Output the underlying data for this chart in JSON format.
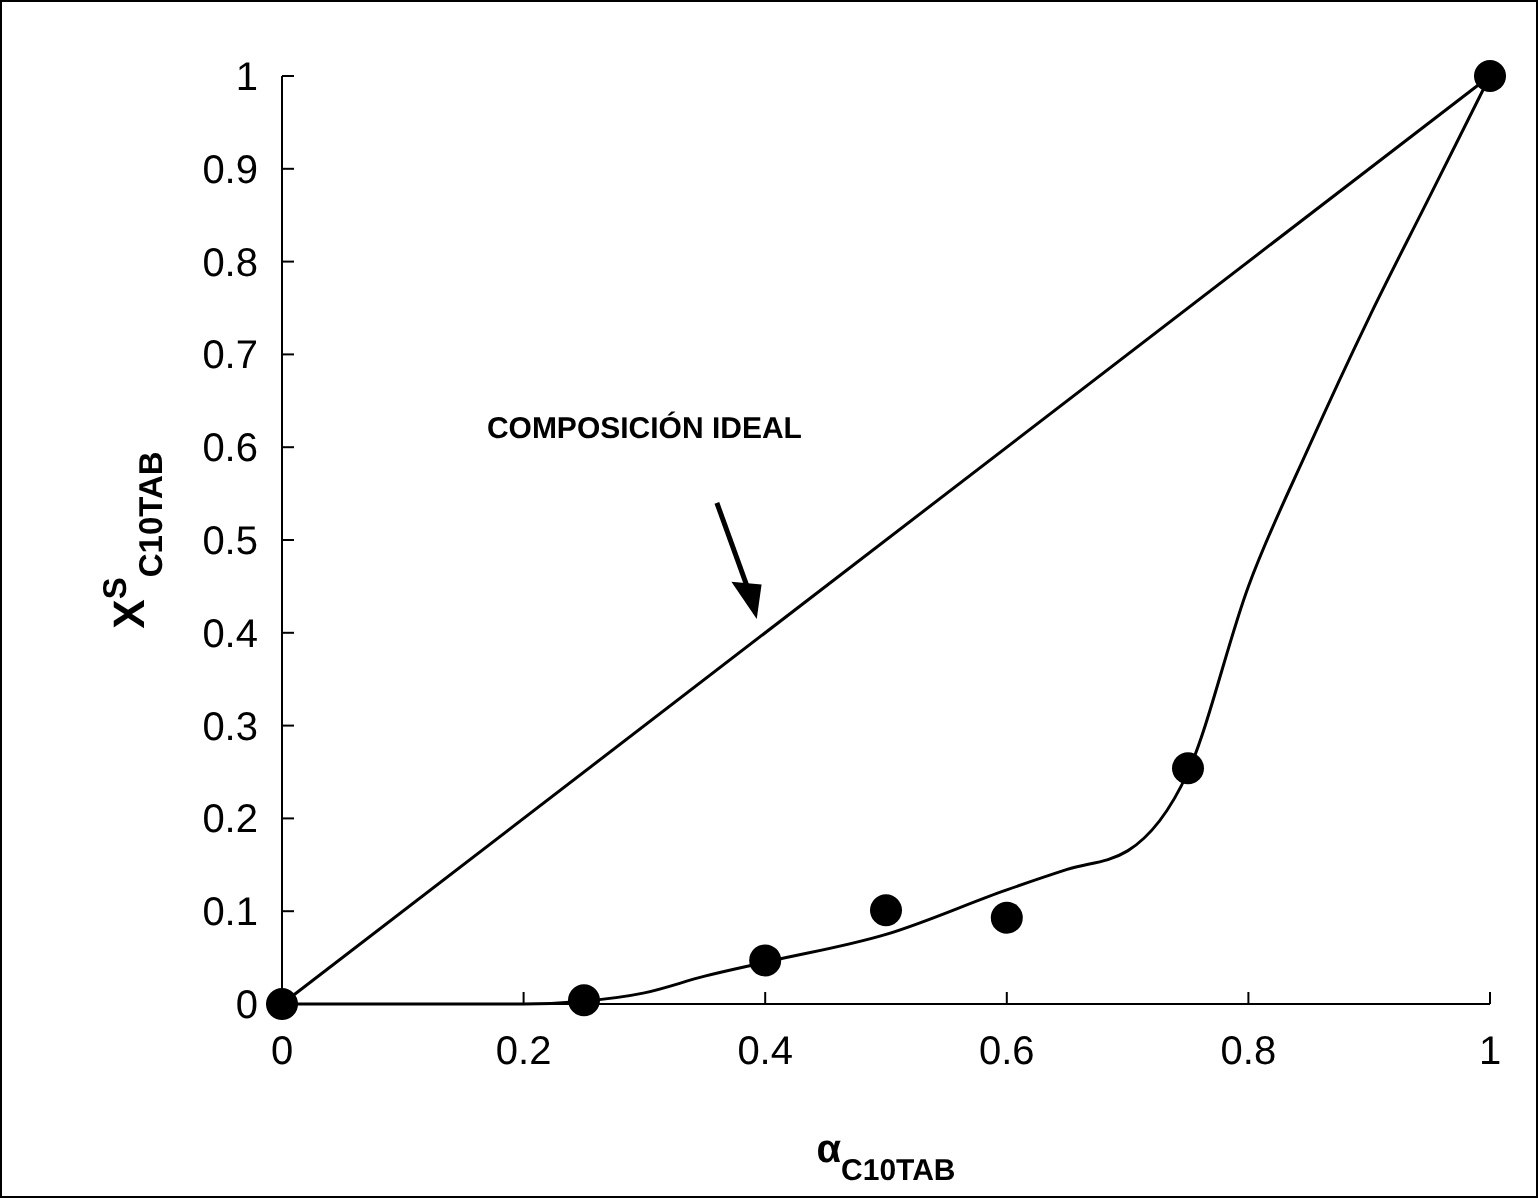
{
  "chart_data": {
    "type": "scatter",
    "xlabel": "α$_{C10TAB}$",
    "ylabel": "X$^{S}$$_{C10TAB}$",
    "xlim": [
      0,
      1
    ],
    "ylim": [
      0,
      1
    ],
    "xticks": [
      0,
      0.2,
      0.4,
      0.6,
      0.8,
      1
    ],
    "yticks": [
      0,
      0.1,
      0.2,
      0.3,
      0.4,
      0.5,
      0.6,
      0.7,
      0.8,
      0.9,
      1
    ],
    "grid": false,
    "annotations": [
      "COMPOSICIÓN IDEAL"
    ],
    "series": [
      {
        "marker": "circle",
        "color": "#000000",
        "x": [
          0,
          0.25,
          0.4,
          0.5,
          0.6,
          0.75,
          1
        ],
        "values": [
          0,
          0.004,
          0.047,
          0.101,
          0.093,
          0.254,
          1
        ]
      },
      {
        "type": "line",
        "line_style": "solid",
        "color": "#000000",
        "x": [
          0,
          0.2,
          0.25,
          0.3,
          0.35,
          0.4,
          0.5,
          0.6,
          0.65,
          0.7,
          0.75,
          0.8,
          0.85,
          0.9,
          0.95,
          1
        ],
        "values": [
          0,
          0,
          0.003,
          0.012,
          0.03,
          0.045,
          0.075,
          0.123,
          0.145,
          0.165,
          0.25,
          0.45,
          0.6,
          0.74,
          0.87,
          1
        ]
      },
      {
        "type": "line",
        "line_style": "solid",
        "color": "#000000",
        "x": [
          0,
          1
        ],
        "values": [
          0,
          1
        ]
      }
    ]
  }
}
